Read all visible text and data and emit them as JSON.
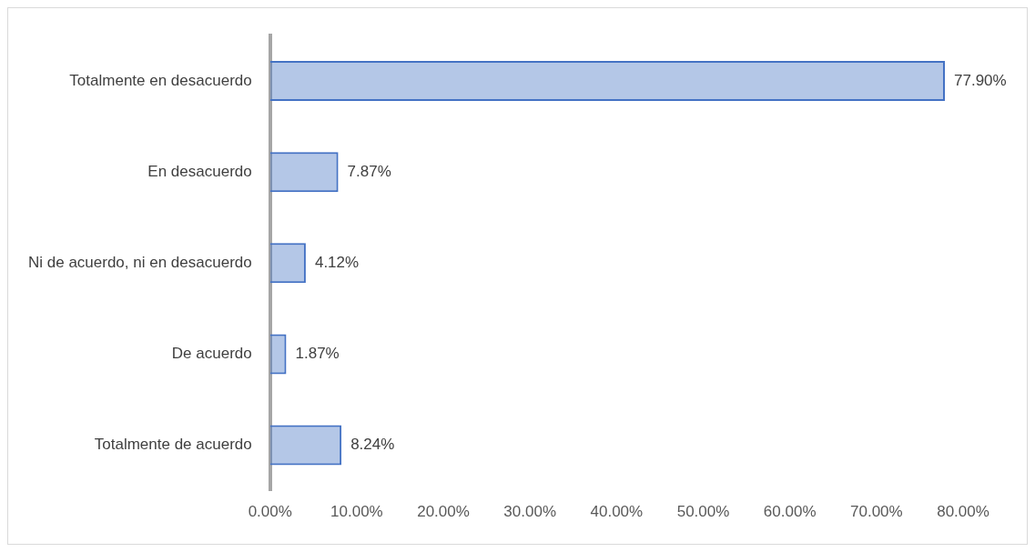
{
  "chart_data": {
    "type": "bar",
    "orientation": "horizontal",
    "categories": [
      "Totalmente en desacuerdo",
      "En desacuerdo",
      "Ni de acuerdo, ni en desacuerdo",
      "De acuerdo",
      "Totalmente de acuerdo"
    ],
    "values": [
      77.9,
      7.87,
      4.12,
      1.87,
      8.24
    ],
    "value_labels": [
      "77.90%",
      "7.87%",
      "4.12%",
      "1.87%",
      "8.24%"
    ],
    "color": "#4472c4",
    "xlim": [
      0,
      80
    ],
    "xticks": [
      {
        "value": 0,
        "label": "0.00%"
      },
      {
        "value": 10,
        "label": "10.00%"
      },
      {
        "value": 20,
        "label": "20.00%"
      },
      {
        "value": 30,
        "label": "30.00%"
      },
      {
        "value": 40,
        "label": "40.00%"
      },
      {
        "value": 50,
        "label": "50.00%"
      },
      {
        "value": 60,
        "label": "60.00%"
      },
      {
        "value": 70,
        "label": "70.00%"
      },
      {
        "value": 80,
        "label": "80.00%"
      }
    ],
    "grid": false,
    "legend": false
  }
}
